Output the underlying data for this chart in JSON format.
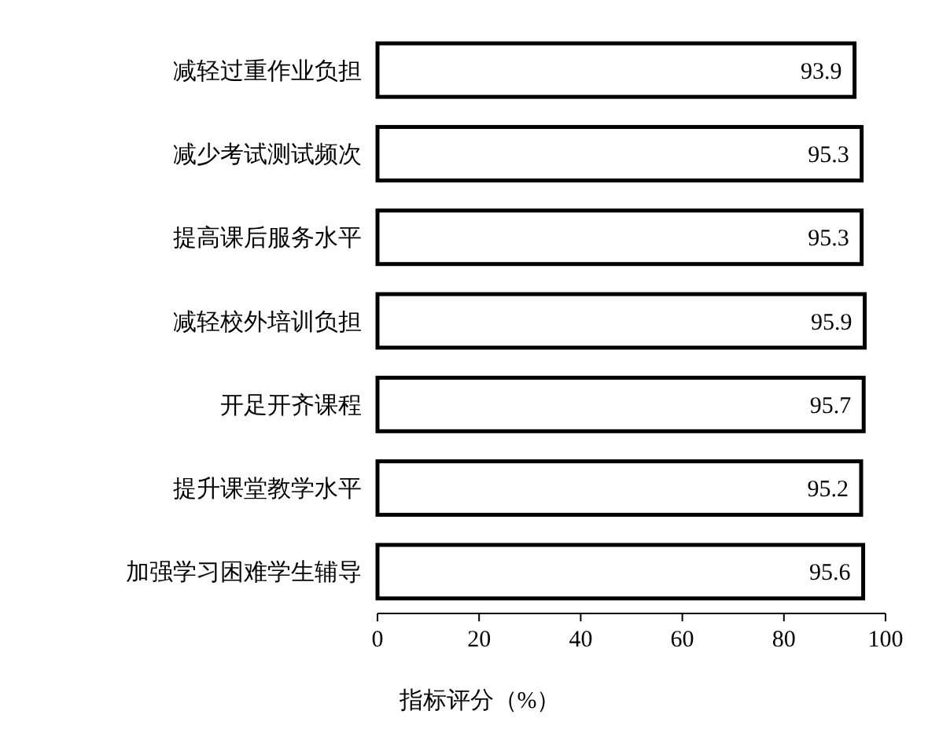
{
  "chart_data": {
    "type": "bar",
    "orientation": "horizontal",
    "xlabel": "指标评分（%）",
    "categories": [
      "减轻过重作业负担",
      "减少考试测试频次",
      "提高课后服务水平",
      "减轻校外培训负担",
      "开足开齐课程",
      "提升课堂教学水平",
      "加强学习困难学生辅导"
    ],
    "values": [
      93.9,
      95.3,
      95.3,
      95.9,
      95.7,
      95.2,
      95.6
    ],
    "color": "#ffffff",
    "xlim": [
      0,
      100
    ],
    "xticks": [
      0,
      20,
      40,
      60,
      80,
      100
    ],
    "grid": false,
    "data_labels": true
  }
}
